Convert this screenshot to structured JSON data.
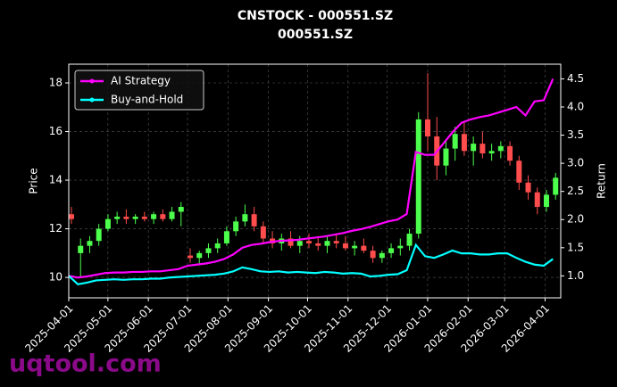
{
  "chart_data": {
    "type": "candlestick",
    "title": "CNSTOCK - 000551.SZ",
    "subtitle": "000551.SZ",
    "ylabel": "Price",
    "y2label": "Return",
    "watermark": "uqtool.com",
    "grid": true,
    "legend": "upper left",
    "up_color": "#4cff4c",
    "down_color": "#ff4c4c",
    "x": [
      "2025-04-01",
      "2025-04-08",
      "2025-04-15",
      "2025-04-22",
      "2025-04-29",
      "2025-05-06",
      "2025-05-13",
      "2025-05-20",
      "2025-05-27",
      "2025-06-03",
      "2025-06-10",
      "2025-06-17",
      "2025-06-24",
      "2025-07-01",
      "2025-07-08",
      "2025-07-15",
      "2025-07-22",
      "2025-07-29",
      "2025-08-05",
      "2025-08-12",
      "2025-08-19",
      "2025-08-26",
      "2025-09-02",
      "2025-09-09",
      "2025-09-16",
      "2025-09-23",
      "2025-09-30",
      "2025-10-07",
      "2025-10-14",
      "2025-10-21",
      "2025-10-28",
      "2025-11-04",
      "2025-11-11",
      "2025-11-18",
      "2025-11-25",
      "2025-12-02",
      "2025-12-09",
      "2025-12-16",
      "2025-12-23",
      "2025-12-30",
      "2026-01-06",
      "2026-01-13",
      "2026-01-20",
      "2026-01-27",
      "2026-02-03",
      "2026-02-10",
      "2026-02-17",
      "2026-02-24",
      "2026-03-03",
      "2026-03-10",
      "2026-03-17",
      "2026-03-24",
      "2026-03-31",
      "2026-04-07"
    ],
    "open": [
      12.6,
      11.0,
      11.3,
      11.5,
      12.0,
      12.4,
      12.5,
      12.4,
      12.5,
      12.4,
      12.6,
      12.4,
      12.7,
      10.9,
      10.8,
      11.0,
      11.2,
      11.4,
      11.9,
      12.3,
      12.6,
      12.1,
      11.6,
      11.4,
      11.6,
      11.3,
      11.5,
      11.4,
      11.3,
      11.5,
      11.4,
      11.2,
      11.3,
      11.1,
      10.8,
      11.0,
      11.2,
      11.3,
      11.8,
      16.5,
      15.8,
      14.6,
      15.3,
      15.9,
      15.2,
      15.5,
      15.1,
      15.2,
      15.4,
      14.8,
      13.9,
      13.5,
      12.9,
      13.4
    ],
    "high": [
      12.9,
      11.6,
      11.7,
      12.2,
      12.6,
      12.7,
      12.8,
      12.6,
      12.7,
      12.7,
      12.8,
      12.9,
      13.1,
      11.2,
      11.1,
      11.4,
      11.6,
      12.1,
      12.5,
      13.0,
      12.9,
      12.3,
      11.9,
      11.8,
      11.9,
      11.7,
      11.8,
      11.7,
      11.7,
      11.8,
      11.7,
      11.5,
      11.6,
      11.3,
      11.1,
      11.4,
      11.6,
      12.0,
      16.8,
      18.4,
      16.6,
      15.6,
      16.2,
      16.4,
      15.8,
      16.0,
      15.5,
      15.6,
      15.6,
      15.0,
      14.2,
      13.7,
      13.6,
      14.3
    ],
    "low": [
      12.2,
      10.0,
      11.0,
      11.3,
      11.9,
      12.2,
      12.2,
      12.2,
      12.3,
      12.2,
      12.3,
      12.3,
      12.1,
      10.6,
      10.5,
      10.8,
      11.0,
      11.3,
      11.7,
      12.1,
      11.9,
      11.4,
      11.2,
      11.1,
      11.2,
      11.0,
      11.2,
      11.1,
      11.0,
      11.2,
      11.1,
      10.9,
      11.0,
      10.6,
      10.6,
      10.8,
      10.9,
      11.1,
      11.6,
      15.2,
      14.0,
      14.2,
      14.8,
      15.0,
      14.6,
      14.9,
      14.8,
      14.9,
      14.6,
      13.6,
      13.2,
      12.6,
      12.7,
      13.2
    ],
    "close": [
      12.4,
      11.3,
      11.5,
      12.0,
      12.4,
      12.5,
      12.4,
      12.5,
      12.4,
      12.6,
      12.4,
      12.7,
      12.9,
      10.8,
      11.0,
      11.2,
      11.4,
      11.9,
      12.3,
      12.6,
      12.1,
      11.6,
      11.4,
      11.6,
      11.3,
      11.5,
      11.4,
      11.3,
      11.5,
      11.4,
      11.2,
      11.3,
      11.1,
      10.8,
      11.0,
      11.2,
      11.3,
      11.8,
      16.5,
      15.8,
      14.6,
      15.3,
      15.9,
      15.2,
      15.5,
      15.1,
      15.2,
      15.4,
      14.8,
      13.9,
      13.5,
      12.9,
      13.4,
      14.1
    ],
    "series": [
      {
        "name": "AI Strategy",
        "color": "#ff00ff",
        "axis": "y2",
        "values": [
          1.0,
          0.97,
          0.99,
          1.02,
          1.05,
          1.06,
          1.06,
          1.07,
          1.07,
          1.08,
          1.08,
          1.1,
          1.12,
          1.18,
          1.2,
          1.22,
          1.25,
          1.3,
          1.38,
          1.5,
          1.55,
          1.57,
          1.6,
          1.62,
          1.63,
          1.64,
          1.66,
          1.68,
          1.7,
          1.73,
          1.76,
          1.8,
          1.83,
          1.87,
          1.92,
          1.97,
          2.0,
          2.1,
          3.2,
          3.15,
          3.15,
          3.35,
          3.55,
          3.72,
          3.78,
          3.82,
          3.85,
          3.9,
          3.95,
          4.0,
          3.85,
          4.1,
          4.12,
          4.5
        ]
      },
      {
        "name": "Buy-and-Hold",
        "color": "#00ffff",
        "axis": "y2",
        "values": [
          1.0,
          0.85,
          0.88,
          0.92,
          0.93,
          0.94,
          0.93,
          0.94,
          0.94,
          0.95,
          0.95,
          0.97,
          0.98,
          0.99,
          1.0,
          1.01,
          1.02,
          1.04,
          1.08,
          1.15,
          1.12,
          1.08,
          1.07,
          1.08,
          1.06,
          1.07,
          1.06,
          1.05,
          1.07,
          1.06,
          1.04,
          1.05,
          1.04,
          0.99,
          1.0,
          1.02,
          1.03,
          1.1,
          1.55,
          1.35,
          1.32,
          1.38,
          1.45,
          1.4,
          1.4,
          1.38,
          1.38,
          1.4,
          1.4,
          1.32,
          1.25,
          1.2,
          1.18,
          1.3
        ]
      }
    ],
    "xlim": [
      "2025-04-01",
      "2026-04-13"
    ],
    "xticks": [
      "2025-04-01",
      "2025-05-01",
      "2025-06-01",
      "2025-07-01",
      "2025-08-01",
      "2025-09-01",
      "2025-10-01",
      "2025-11-01",
      "2025-12-01",
      "2026-01-01",
      "2026-02-01",
      "2026-03-01",
      "2026-04-01"
    ],
    "ylim": [
      9.16,
      18.77
    ],
    "yticks": [
      10,
      12,
      14,
      16,
      18
    ],
    "y2lim": [
      0.61,
      4.76
    ],
    "y2ticks": [
      {
        "value": 1.0,
        "label": "1.0"
      },
      {
        "value": 1.5,
        "label": "1.5"
      },
      {
        "value": 2.0,
        "label": "2.0"
      },
      {
        "value": 2.5,
        "label": "2.5"
      },
      {
        "value": 3.0,
        "label": "3.0"
      },
      {
        "value": 3.5,
        "label": "3.5"
      },
      {
        "value": 4.0,
        "label": "4.0"
      },
      {
        "value": 4.5,
        "label": "4.5"
      }
    ]
  }
}
